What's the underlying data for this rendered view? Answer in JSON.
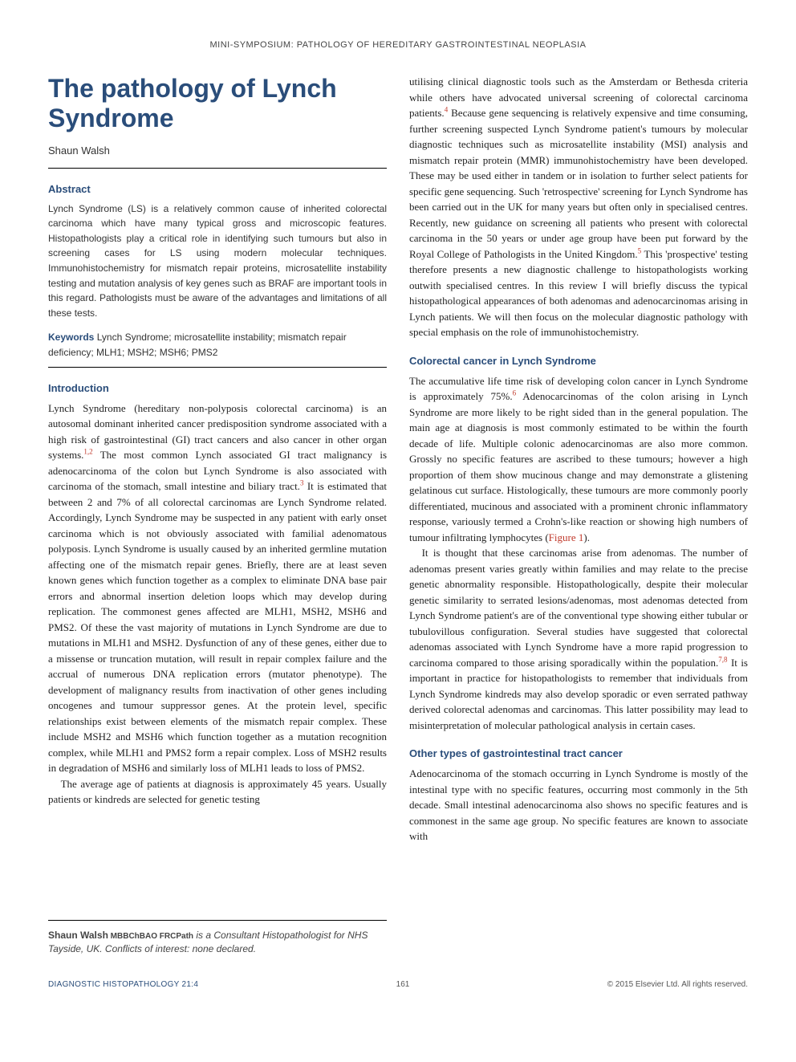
{
  "header": "MINI-SYMPOSIUM: PATHOLOGY OF HEREDITARY GASTROINTESTINAL NEOPLASIA",
  "title": "The pathology of Lynch Syndrome",
  "author": "Shaun Walsh",
  "abstract": {
    "heading": "Abstract",
    "text": "Lynch Syndrome (LS) is a relatively common cause of inherited colorectal carcinoma which have many typical gross and microscopic features. Histopathologists play a critical role in identifying such tumours but also in screening cases for LS using modern molecular techniques. Immunohistochemistry for mismatch repair proteins, microsatellite instability testing and mutation analysis of key genes such as BRAF are important tools in this regard. Pathologists must be aware of the advantages and limitations of all these tests."
  },
  "keywords": {
    "label": "Keywords",
    "text": " Lynch Syndrome; microsatellite instability; mismatch repair deficiency; MLH1; MSH2; MSH6; PMS2"
  },
  "intro": {
    "heading": "Introduction",
    "p1a": "Lynch Syndrome (hereditary non-polyposis colorectal carcinoma) is an autosomal dominant inherited cancer predisposition syndrome associated with a high risk of gastrointestinal (GI) tract cancers and also cancer in other organ systems.",
    "ref1": "1,2",
    "p1b": " The most common Lynch associated GI tract malignancy is adenocarcinoma of the colon but Lynch Syndrome is also associated with carcinoma of the stomach, small intestine and biliary tract.",
    "ref2": "3",
    "p1c": " It is estimated that between 2 and 7% of all colorectal carcinomas are Lynch Syndrome related. Accordingly, Lynch Syndrome may be suspected in any patient with early onset carcinoma which is not obviously associated with familial adenomatous polyposis. Lynch Syndrome is usually caused by an inherited germline mutation affecting one of the mismatch repair genes. Briefly, there are at least seven known genes which function together as a complex to eliminate DNA base pair errors and abnormal insertion deletion loops which may develop during replication. The commonest genes affected are MLH1, MSH2, MSH6 and PMS2. Of these the vast majority of mutations in Lynch Syndrome are due to mutations in MLH1 and MSH2. Dysfunction of any of these genes, either due to a missense or truncation mutation, will result in repair complex failure and the accrual of numerous DNA replication errors (mutator phenotype). The development of malignancy results from inactivation of other genes including oncogenes and tumour suppressor genes. At the protein level, specific relationships exist between elements of the mismatch repair complex. These include MSH2 and MSH6 which function together as a mutation recognition complex, while MLH1 and PMS2 form a repair complex. Loss of MSH2 results in degradation of MSH6 and similarly loss of MLH1 leads to loss of PMS2.",
    "p2": "The average age of patients at diagnosis is approximately 45 years. Usually patients or kindreds are selected for genetic testing ",
    "p2cont_a": "utilising clinical diagnostic tools such as the Amsterdam or Bethesda criteria while others have advocated universal screening of colorectal carcinoma patients.",
    "ref3": "4",
    "p2cont_b": " Because gene sequencing is relatively expensive and time consuming, further screening suspected Lynch Syndrome patient's tumours by molecular diagnostic techniques such as microsatellite instability (MSI) analysis and mismatch repair protein (MMR) immunohistochemistry have been developed. These may be used either in tandem or in isolation to further select patients for specific gene sequencing. Such 'retrospective' screening for Lynch Syndrome has been carried out in the UK for many years but often only in specialised centres. Recently, new guidance on screening all patients who present with colorectal carcinoma in the 50 years or under age group have been put forward by the Royal College of Pathologists in the United Kingdom.",
    "ref4": "5",
    "p2cont_c": " This 'prospective' testing therefore presents a new diagnostic challenge to histopathologists working outwith specialised centres. In this review I will briefly discuss the typical histopathological appearances of both adenomas and adenocarcinomas arising in Lynch patients. We will then focus on the molecular diagnostic pathology with special emphasis on the role of immunohistochemistry."
  },
  "crc": {
    "heading": "Colorectal cancer in Lynch Syndrome",
    "p1a": "The accumulative life time risk of developing colon cancer in Lynch Syndrome is approximately 75%.",
    "ref1": "6",
    "p1b": " Adenocarcinomas of the colon arising in Lynch Syndrome are more likely to be right sided than in the general population. The main age at diagnosis is most commonly estimated to be within the fourth decade of life. Multiple colonic adenocarcinomas are also more common. Grossly no specific features are ascribed to these tumours; however a high proportion of them show mucinous change and may demonstrate a glistening gelatinous cut surface. Histologically, these tumours are more commonly poorly differentiated, mucinous and associated with a prominent chronic inflammatory response, variously termed a Crohn's-like reaction or showing high numbers of tumour infiltrating lymphocytes (",
    "fig1": "Figure 1",
    "p1c": ").",
    "p2a": "It is thought that these carcinomas arise from adenomas. The number of adenomas present varies greatly within families and may relate to the precise genetic abnormality responsible. Histopathologically, despite their molecular genetic similarity to serrated lesions/adenomas, most adenomas detected from Lynch Syndrome patient's are of the conventional type showing either tubular or tubulovillous configuration. Several studies have suggested that colorectal adenomas associated with Lynch Syndrome have a more rapid progression to carcinoma compared to those arising sporadically within the population.",
    "ref2": "7,8",
    "p2b": " It is important in practice for histopathologists to remember that individuals from Lynch Syndrome kindreds may also develop sporadic or even serrated pathway derived colorectal adenomas and carcinomas. This latter possibility may lead to misinterpretation of molecular pathological analysis in certain cases."
  },
  "other": {
    "heading": "Other types of gastrointestinal tract cancer",
    "p1": "Adenocarcinoma of the stomach occurring in Lynch Syndrome is mostly of the intestinal type with no specific features, occurring most commonly in the 5th decade. Small intestinal adenocarcinoma also shows no specific features and is commonest in the same age group. No specific features are known to associate with"
  },
  "authorInfo": {
    "name": "Shaun Walsh",
    "credentials": " MBBChBAO FRCPath",
    "text": " is a Consultant Histopathologist for NHS Tayside, UK. Conflicts of interest: none declared."
  },
  "footer": {
    "journal": "DIAGNOSTIC HISTOPATHOLOGY 21:4",
    "page": "161",
    "copyright": "© 2015 Elsevier Ltd. All rights reserved."
  }
}
